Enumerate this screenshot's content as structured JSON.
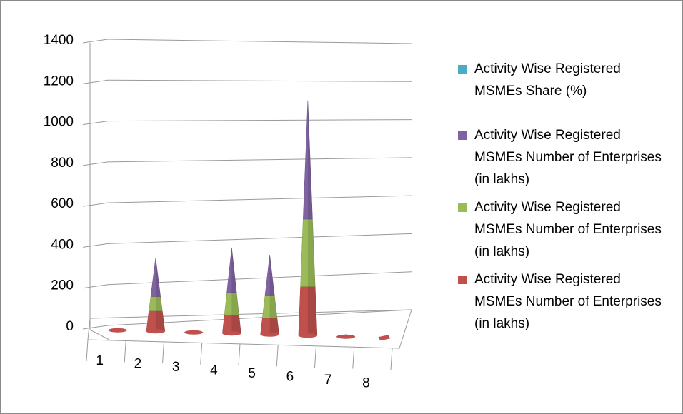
{
  "chart_data": {
    "type": "bar",
    "style": "3d-cone",
    "categories": [
      "1",
      "2",
      "3",
      "4",
      "5",
      "6",
      "7",
      "8"
    ],
    "y_ticks": [
      "0",
      "200",
      "400",
      "600",
      "800",
      "1000",
      "1200",
      "1400"
    ],
    "ylim": [
      0,
      1400
    ],
    "grid": true,
    "legend_position": "right",
    "series": [
      {
        "name": "Activity Wise Registered MSMEs Share (%)",
        "color": "#4bacc6",
        "values": [
          0,
          0,
          0,
          0,
          0,
          0,
          0,
          0
        ]
      },
      {
        "name": "Activity Wise Registered MSMEs Number of Enterprises (in lakhs)",
        "color": "#8064a2",
        "values": [
          5,
          190,
          0,
          220,
          200,
          580,
          10,
          0
        ]
      },
      {
        "name": "Activity Wise Registered MSMEs Number of Enterprises (in lakhs)",
        "color": "#9bbb59",
        "values": [
          0,
          70,
          0,
          110,
          110,
          330,
          0,
          0
        ]
      },
      {
        "name": "Activity Wise Registered MSMEs Number of Enterprises (in lakhs)",
        "color": "#c0504d",
        "values": [
          0,
          100,
          5,
          90,
          80,
          240,
          0,
          0
        ]
      }
    ]
  }
}
